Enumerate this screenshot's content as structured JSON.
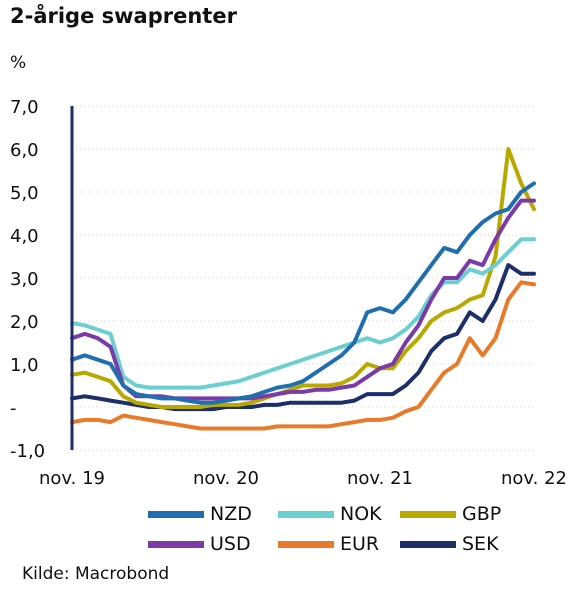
{
  "header": {
    "title": "2-årige swaprenter",
    "unit": "%"
  },
  "source": "Kilde: Macrobond",
  "colors": {
    "NZD": "#1f6fb0",
    "NOK": "#6ccfcf",
    "GBP": "#b8a800",
    "USD": "#7b3aa8",
    "EUR": "#e87a2a",
    "SEK": "#1d2f6b",
    "axis": "#1d2f6b",
    "grid": "#cfcfcf"
  },
  "chart_data": {
    "type": "line",
    "title": "2-årige swaprenter",
    "ylabel": "%",
    "xlabel": "",
    "ylim": [
      -1.0,
      7.0
    ],
    "yticks": [
      {
        "value": 7.0,
        "label": "7,0"
      },
      {
        "value": 6.0,
        "label": "6,0"
      },
      {
        "value": 5.0,
        "label": "5,0"
      },
      {
        "value": 4.0,
        "label": "4,0"
      },
      {
        "value": 3.0,
        "label": "3,0"
      },
      {
        "value": 2.0,
        "label": "2,0"
      },
      {
        "value": 1.0,
        "label": "1,0"
      },
      {
        "value": 0.0,
        "label": "-"
      },
      {
        "value": -1.0,
        "label": "-1,0"
      }
    ],
    "xlim": [
      "2019-11",
      "2022-11"
    ],
    "xticks": [
      {
        "value": "2019-11",
        "label": "nov. 19"
      },
      {
        "value": "2020-11",
        "label": "nov. 20"
      },
      {
        "value": "2021-11",
        "label": "nov. 21"
      },
      {
        "value": "2022-11",
        "label": "nov. 22"
      }
    ],
    "grid": true,
    "legend_position": "bottom",
    "x": [
      "2019-11",
      "2019-12",
      "2020-01",
      "2020-02",
      "2020-03",
      "2020-04",
      "2020-05",
      "2020-06",
      "2020-07",
      "2020-08",
      "2020-09",
      "2020-10",
      "2020-11",
      "2020-12",
      "2021-01",
      "2021-02",
      "2021-03",
      "2021-04",
      "2021-05",
      "2021-06",
      "2021-07",
      "2021-08",
      "2021-09",
      "2021-10",
      "2021-11",
      "2021-12",
      "2022-01",
      "2022-02",
      "2022-03",
      "2022-04",
      "2022-05",
      "2022-06",
      "2022-07",
      "2022-08",
      "2022-09",
      "2022-10",
      "2022-11"
    ],
    "series": [
      {
        "name": "NZD",
        "values": [
          1.1,
          1.2,
          1.1,
          1.0,
          0.5,
          0.3,
          0.25,
          0.2,
          0.2,
          0.15,
          0.1,
          0.1,
          0.15,
          0.2,
          0.25,
          0.35,
          0.45,
          0.5,
          0.6,
          0.8,
          1.0,
          1.2,
          1.5,
          2.2,
          2.3,
          2.2,
          2.5,
          2.9,
          3.3,
          3.7,
          3.6,
          4.0,
          4.3,
          4.5,
          4.6,
          5.0,
          5.2
        ]
      },
      {
        "name": "NOK",
        "values": [
          1.95,
          1.9,
          1.8,
          1.7,
          0.7,
          0.5,
          0.45,
          0.45,
          0.45,
          0.45,
          0.45,
          0.5,
          0.55,
          0.6,
          0.7,
          0.8,
          0.9,
          1.0,
          1.1,
          1.2,
          1.3,
          1.4,
          1.5,
          1.6,
          1.5,
          1.6,
          1.8,
          2.1,
          2.6,
          2.9,
          2.9,
          3.2,
          3.1,
          3.3,
          3.6,
          3.9,
          3.9
        ]
      },
      {
        "name": "GBP",
        "values": [
          0.75,
          0.8,
          0.7,
          0.6,
          0.25,
          0.1,
          0.05,
          0.0,
          0.0,
          0.0,
          0.0,
          0.05,
          0.05,
          0.05,
          0.1,
          0.2,
          0.3,
          0.4,
          0.5,
          0.5,
          0.5,
          0.55,
          0.7,
          1.0,
          0.9,
          0.9,
          1.3,
          1.6,
          2.0,
          2.2,
          2.3,
          2.5,
          2.6,
          3.5,
          6.0,
          5.2,
          4.6
        ]
      },
      {
        "name": "USD",
        "values": [
          1.6,
          1.7,
          1.6,
          1.4,
          0.5,
          0.25,
          0.25,
          0.25,
          0.2,
          0.2,
          0.2,
          0.2,
          0.2,
          0.2,
          0.2,
          0.25,
          0.3,
          0.35,
          0.35,
          0.4,
          0.4,
          0.45,
          0.5,
          0.7,
          0.9,
          1.0,
          1.5,
          1.9,
          2.5,
          3.0,
          3.0,
          3.4,
          3.3,
          3.9,
          4.4,
          4.8,
          4.8
        ]
      },
      {
        "name": "EUR",
        "values": [
          -0.35,
          -0.3,
          -0.3,
          -0.35,
          -0.2,
          -0.25,
          -0.3,
          -0.35,
          -0.4,
          -0.45,
          -0.5,
          -0.5,
          -0.5,
          -0.5,
          -0.5,
          -0.5,
          -0.45,
          -0.45,
          -0.45,
          -0.45,
          -0.45,
          -0.4,
          -0.35,
          -0.3,
          -0.3,
          -0.25,
          -0.1,
          0.0,
          0.4,
          0.8,
          1.0,
          1.6,
          1.2,
          1.6,
          2.5,
          2.9,
          2.85
        ]
      },
      {
        "name": "SEK",
        "values": [
          0.2,
          0.25,
          0.2,
          0.15,
          0.1,
          0.05,
          0.0,
          0.0,
          -0.05,
          -0.05,
          -0.05,
          -0.05,
          0.0,
          0.0,
          0.0,
          0.05,
          0.05,
          0.1,
          0.1,
          0.1,
          0.1,
          0.1,
          0.15,
          0.3,
          0.3,
          0.3,
          0.5,
          0.8,
          1.3,
          1.6,
          1.7,
          2.2,
          2.0,
          2.5,
          3.3,
          3.1,
          3.1
        ]
      }
    ]
  }
}
